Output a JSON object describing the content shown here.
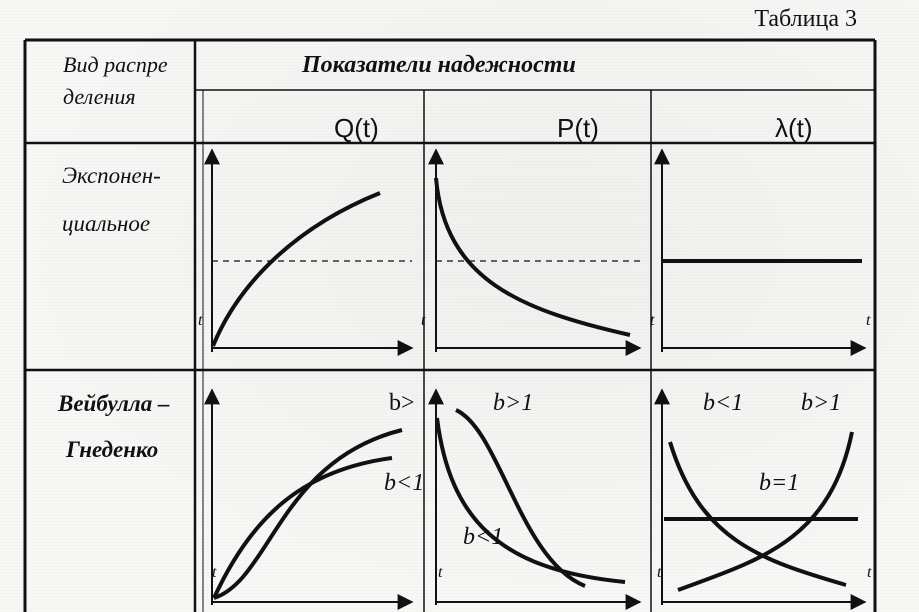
{
  "caption": "Таблица 3",
  "header": {
    "col0_line1": "Вид распре",
    "col0_line2": "деления",
    "group_title": "Показатели надежности",
    "cols": [
      "Q(t)",
      "P(t)",
      "λ(t)"
    ]
  },
  "rows": [
    {
      "name_line1": "Экспонен-",
      "name_line2": "циальное"
    },
    {
      "name_line1": "Вейбулла –",
      "name_line2": "Гнеденко"
    }
  ],
  "axis_var": "t",
  "weibull_labels": {
    "q_b_gt": "b>",
    "q_b_lt": "b<1",
    "p_b_gt": "b>1",
    "p_b_lt": "b<1",
    "l_b_lt": "b<1",
    "l_b_gt": "b>1",
    "l_b_eq": "b=1"
  }
}
